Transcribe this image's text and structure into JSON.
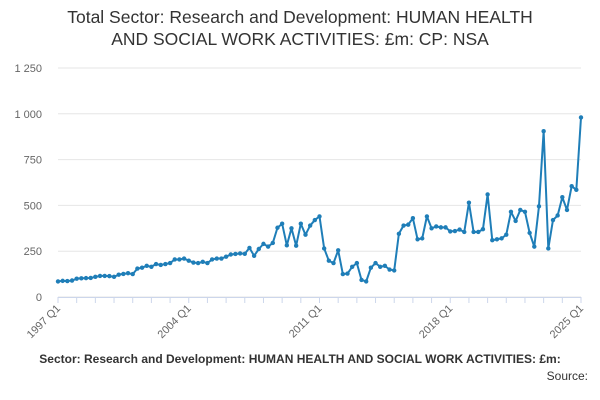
{
  "chart_data": {
    "type": "line",
    "title_lines": [
      "Total Sector: Research and Development: HUMAN HEALTH",
      "AND SOCIAL WORK ACTIVITIES: £m: CP: NSA"
    ],
    "caption": "Sector: Research and Development: HUMAN HEALTH AND SOCIAL WORK ACTIVITIES: £m:",
    "source_label": "Source:",
    "xlabel": "",
    "ylabel": "",
    "ylim": [
      0,
      1250
    ],
    "yticks": [
      0,
      250,
      500,
      750,
      1000,
      1250
    ],
    "ytick_labels": [
      "0",
      "250",
      "500",
      "750",
      "1 000",
      "1 250"
    ],
    "xtick_labels": [
      {
        "label": "1997 Q1",
        "q": 0
      },
      {
        "label": "2004 Q1",
        "q": 28
      },
      {
        "label": "2011 Q1",
        "q": 56
      },
      {
        "label": "2018 Q1",
        "q": 84
      },
      {
        "label": "2025 Q1",
        "q": 112
      }
    ],
    "grid": true,
    "legend": "none",
    "color": "#1f7eb8",
    "series": [
      {
        "x_start": "1997 Q1",
        "values": [
          85,
          88,
          87,
          90,
          100,
          102,
          103,
          104,
          110,
          115,
          115,
          114,
          110,
          122,
          126,
          130,
          125,
          155,
          160,
          170,
          165,
          180,
          175,
          180,
          185,
          205,
          205,
          210,
          198,
          188,
          185,
          192,
          185,
          205,
          210,
          210,
          220,
          232,
          235,
          238,
          236,
          268,
          225,
          262,
          290,
          275,
          295,
          378,
          400,
          282,
          375,
          280,
          400,
          340,
          390,
          420,
          440,
          265,
          198,
          185,
          255,
          125,
          128,
          165,
          185,
          93,
          85,
          160,
          185,
          165,
          170,
          150,
          145,
          345,
          390,
          395,
          430,
          315,
          320,
          440,
          375,
          385,
          380,
          380,
          358,
          360,
          368,
          355,
          515,
          355,
          355,
          370,
          560,
          310,
          315,
          320,
          340,
          465,
          415,
          475,
          465,
          350,
          275,
          495,
          905,
          265,
          420,
          445,
          545,
          475,
          605,
          585,
          980
        ]
      }
    ]
  }
}
